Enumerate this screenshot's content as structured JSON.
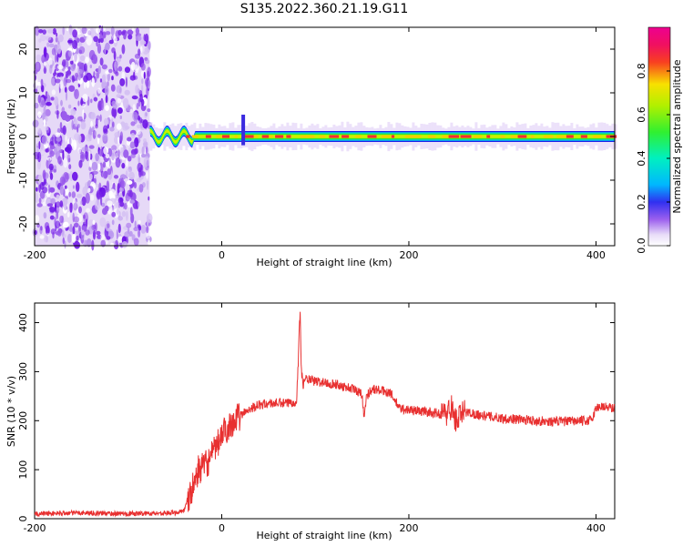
{
  "figure": {
    "title": "S135.2022.360.21.19.G11"
  },
  "chart_data": [
    {
      "type": "heatmap",
      "title": "",
      "xlabel": "Height of straight line (km)",
      "ylabel": "Frequency (Hz)",
      "xlim": [
        -200,
        420
      ],
      "ylim": [
        -25,
        25
      ],
      "xticks": [
        -200,
        0,
        200,
        400
      ],
      "yticks": [
        -20,
        -10,
        0,
        10,
        20
      ],
      "colorbar": {
        "label": "Normalized spectral amplitude",
        "range": [
          0,
          1
        ],
        "ticks": [
          0.0,
          0.2,
          0.4,
          0.6,
          0.8
        ]
      },
      "regions": [
        {
          "name": "noise",
          "x": [
            -200,
            -77
          ],
          "y": [
            -25,
            25
          ],
          "amplitude": "low (0.0–0.3)"
        },
        {
          "name": "signal band",
          "x": [
            -77,
            420
          ],
          "center_frequency": 0,
          "half_width": 1.2,
          "amplitude": "high (0.6–1.0)"
        }
      ],
      "features": [
        {
          "name": "spike",
          "x": 23,
          "y_range": [
            -2,
            5
          ]
        }
      ]
    },
    {
      "type": "line",
      "title": "",
      "xlabel": "Height of straight line (km)",
      "ylabel": "SNR (10 * v/v)",
      "xlim": [
        -200,
        420
      ],
      "ylim": [
        0,
        440
      ],
      "xticks": [
        -200,
        0,
        200,
        400
      ],
      "yticks": [
        0,
        100,
        200,
        300,
        400
      ],
      "color": "#e83030",
      "series": [
        {
          "x": [
            -200,
            -150,
            -100,
            -50,
            -40,
            -35,
            -30,
            -25,
            -20,
            -15,
            -10,
            -5,
            0,
            10,
            20,
            30,
            40,
            50,
            60,
            70,
            80,
            82,
            83,
            84,
            85,
            87,
            90,
            100,
            120,
            140,
            150,
            152,
            155,
            160,
            180,
            190,
            200,
            220,
            240,
            245,
            250,
            260,
            280,
            300,
            350,
            395,
            400,
            405,
            410,
            420
          ],
          "y": [
            10,
            12,
            10,
            12,
            18,
            40,
            70,
            100,
            105,
            115,
            130,
            150,
            170,
            195,
            210,
            225,
            232,
            235,
            236,
            235,
            240,
            330,
            400,
            420,
            300,
            275,
            285,
            280,
            275,
            265,
            255,
            210,
            250,
            265,
            258,
            225,
            222,
            218,
            212,
            230,
            200,
            218,
            210,
            205,
            198,
            200,
            225,
            230,
            228,
            225
          ]
        }
      ]
    }
  ]
}
